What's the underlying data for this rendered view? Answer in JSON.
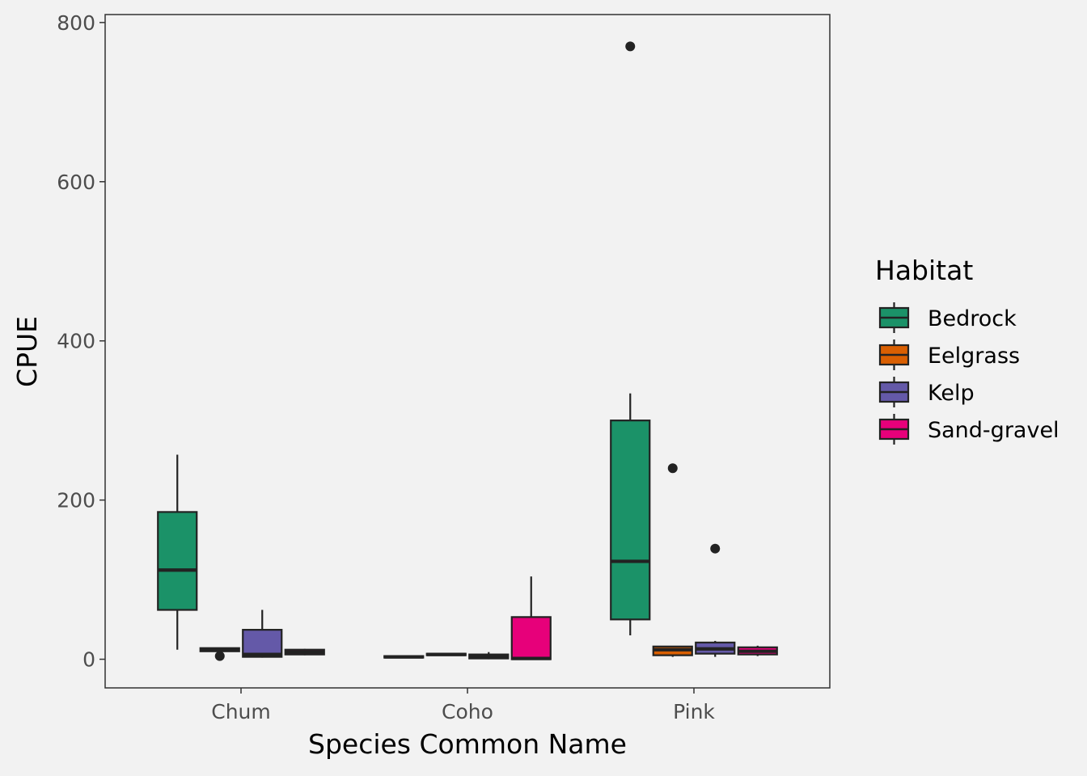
{
  "chart_data": {
    "type": "boxplot",
    "xlabel": "Species Common Name",
    "ylabel": "CPUE",
    "ylim": [
      -36,
      810
    ],
    "yticks": [
      0,
      200,
      400,
      600,
      800
    ],
    "categories": [
      "Chum",
      "Coho",
      "Pink"
    ],
    "grid": false,
    "legend": {
      "title": "Habitat",
      "placement": "right",
      "entries": [
        "Bedrock",
        "Eelgrass",
        "Kelp",
        "Sand-gravel"
      ]
    },
    "colors": {
      "Bedrock": "#1b9268",
      "Eelgrass": "#d95f02",
      "Kelp": "#6459a8",
      "Sand-gravel": "#e7007a",
      "outline": "#222222",
      "background": "#f2f2f2"
    },
    "series": [
      {
        "name": "Bedrock",
        "boxes": [
          {
            "category": "Chum",
            "whisker_low": 12,
            "q1": 62,
            "median": 112,
            "q3": 185,
            "whisker_high": 257,
            "outliers": []
          },
          {
            "category": "Coho",
            "whisker_low": 2,
            "q1": 2,
            "median": 3,
            "q3": 4,
            "whisker_high": 4,
            "outliers": []
          },
          {
            "category": "Pink",
            "whisker_low": 30,
            "q1": 50,
            "median": 123,
            "q3": 300,
            "whisker_high": 334,
            "outliers": [
              770
            ]
          }
        ]
      },
      {
        "name": "Eelgrass",
        "boxes": [
          {
            "category": "Chum",
            "whisker_low": 10,
            "q1": 10,
            "median": 12,
            "q3": 14,
            "whisker_high": 14,
            "outliers": [
              4
            ]
          },
          {
            "category": "Coho",
            "whisker_low": 5,
            "q1": 5,
            "median": 6,
            "q3": 7,
            "whisker_high": 7,
            "outliers": []
          },
          {
            "category": "Pink",
            "whisker_low": 3,
            "q1": 5,
            "median": 12,
            "q3": 16,
            "whisker_high": 16,
            "outliers": [
              240
            ]
          }
        ]
      },
      {
        "name": "Kelp",
        "boxes": [
          {
            "category": "Chum",
            "whisker_low": 2,
            "q1": 3,
            "median": 6,
            "q3": 37,
            "whisker_high": 62,
            "outliers": []
          },
          {
            "category": "Coho",
            "whisker_low": 0,
            "q1": 1,
            "median": 3,
            "q3": 6,
            "whisker_high": 9,
            "outliers": []
          },
          {
            "category": "Pink",
            "whisker_low": 3,
            "q1": 7,
            "median": 13,
            "q3": 21,
            "whisker_high": 23,
            "outliers": [
              139
            ]
          }
        ]
      },
      {
        "name": "Sand-gravel",
        "boxes": [
          {
            "category": "Chum",
            "whisker_low": 5,
            "q1": 6,
            "median": 9,
            "q3": 12,
            "whisker_high": 13,
            "outliers": []
          },
          {
            "category": "Coho",
            "whisker_low": 0,
            "q1": 0,
            "median": 1,
            "q3": 53,
            "whisker_high": 104,
            "outliers": []
          },
          {
            "category": "Pink",
            "whisker_low": 4,
            "q1": 6,
            "median": 10,
            "q3": 15,
            "whisker_high": 17,
            "outliers": []
          }
        ]
      }
    ]
  }
}
